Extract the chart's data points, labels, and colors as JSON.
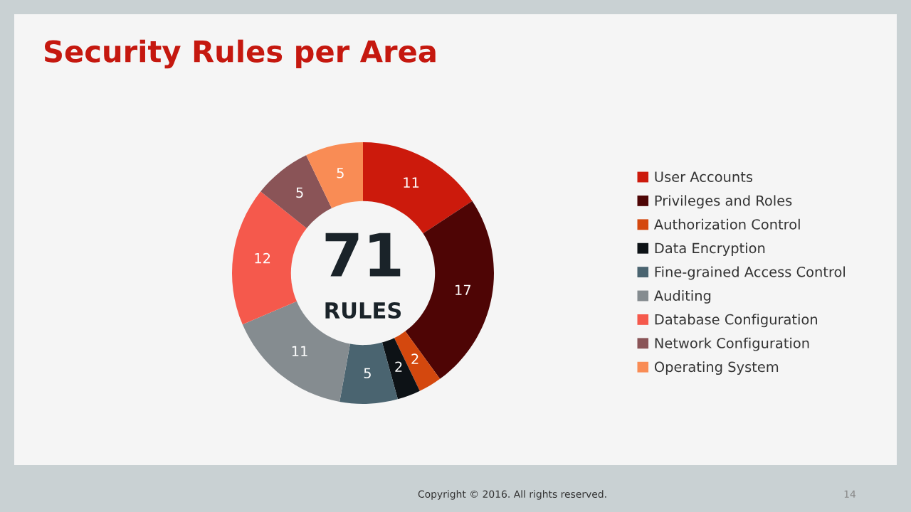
{
  "chart_data": {
    "type": "donut",
    "title": "Security Rules per Area",
    "categories": [
      "User Accounts",
      "Privileges and Roles",
      "Authorization Control",
      "Data Encryption",
      "Fine-grained Access Control",
      "Auditing",
      "Database Configuration",
      "Network Configuration",
      "Operating System"
    ],
    "values": [
      11,
      17,
      2,
      2,
      5,
      11,
      12,
      5,
      5
    ],
    "colors": [
      "#cc1a0c",
      "#4e0505",
      "#d4480e",
      "#0d1216",
      "#4a6470",
      "#858c90",
      "#f5594c",
      "#8a5457",
      "#f98c55"
    ],
    "data_labels": true,
    "legend": "right",
    "annotations": [
      "71",
      "RULES",
      "Copyright © 2016. All rights reserved.",
      "14"
    ]
  }
}
